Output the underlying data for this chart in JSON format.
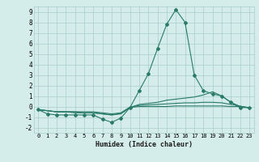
{
  "title": "",
  "xlabel": "Humidex (Indice chaleur)",
  "ylabel": "",
  "xlim": [
    -0.5,
    23.5
  ],
  "ylim": [
    -2.5,
    9.5
  ],
  "yticks": [
    -2,
    -1,
    0,
    1,
    2,
    3,
    4,
    5,
    6,
    7,
    8,
    9
  ],
  "xticks": [
    0,
    1,
    2,
    3,
    4,
    5,
    6,
    7,
    8,
    9,
    10,
    11,
    12,
    13,
    14,
    15,
    16,
    17,
    18,
    19,
    20,
    21,
    22,
    23
  ],
  "background_color": "#d4edea",
  "grid_color": "#a8ccc8",
  "line_color": "#2a7a6a",
  "lines": [
    {
      "x": [
        0,
        1,
        2,
        3,
        4,
        5,
        6,
        7,
        8,
        9,
        10,
        11,
        12,
        13,
        14,
        15,
        16,
        17,
        18,
        19,
        20,
        21,
        22,
        23
      ],
      "y": [
        -0.3,
        -0.7,
        -0.8,
        -0.8,
        -0.8,
        -0.8,
        -0.8,
        -1.2,
        -1.5,
        -1.1,
        -0.1,
        1.5,
        3.1,
        5.5,
        7.8,
        9.2,
        8.0,
        3.0,
        1.5,
        1.2,
        1.0,
        0.4,
        -0.1,
        -0.1
      ],
      "marker": "D",
      "markersize": 2.0
    },
    {
      "x": [
        0,
        1,
        2,
        3,
        4,
        5,
        6,
        7,
        8,
        9,
        10,
        11,
        12,
        13,
        14,
        15,
        16,
        17,
        18,
        19,
        20,
        21,
        22,
        23
      ],
      "y": [
        -0.3,
        -0.4,
        -0.5,
        -0.5,
        -0.6,
        -0.6,
        -0.6,
        -0.7,
        -0.8,
        -0.7,
        -0.1,
        0.2,
        0.3,
        0.4,
        0.6,
        0.7,
        0.8,
        0.9,
        1.1,
        1.4,
        1.0,
        0.4,
        0.0,
        -0.1
      ],
      "marker": null,
      "markersize": 0
    },
    {
      "x": [
        0,
        1,
        2,
        3,
        4,
        5,
        6,
        7,
        8,
        9,
        10,
        11,
        12,
        13,
        14,
        15,
        16,
        17,
        18,
        19,
        20,
        21,
        22,
        23
      ],
      "y": [
        -0.3,
        -0.4,
        -0.5,
        -0.5,
        -0.5,
        -0.5,
        -0.5,
        -0.6,
        -0.7,
        -0.6,
        -0.05,
        0.1,
        0.15,
        0.2,
        0.25,
        0.3,
        0.35,
        0.35,
        0.4,
        0.4,
        0.35,
        0.2,
        0.05,
        -0.15
      ],
      "marker": null,
      "markersize": 0
    },
    {
      "x": [
        0,
        1,
        2,
        3,
        4,
        5,
        6,
        7,
        8,
        9,
        10,
        11,
        12,
        13,
        14,
        15,
        16,
        17,
        18,
        19,
        20,
        21,
        22,
        23
      ],
      "y": [
        -0.3,
        -0.4,
        -0.5,
        -0.5,
        -0.5,
        -0.6,
        -0.6,
        -0.7,
        -0.8,
        -0.65,
        -0.1,
        0.0,
        0.0,
        0.0,
        0.0,
        0.05,
        0.05,
        0.05,
        0.05,
        0.05,
        0.05,
        0.0,
        0.0,
        -0.1
      ],
      "marker": null,
      "markersize": 0
    }
  ]
}
